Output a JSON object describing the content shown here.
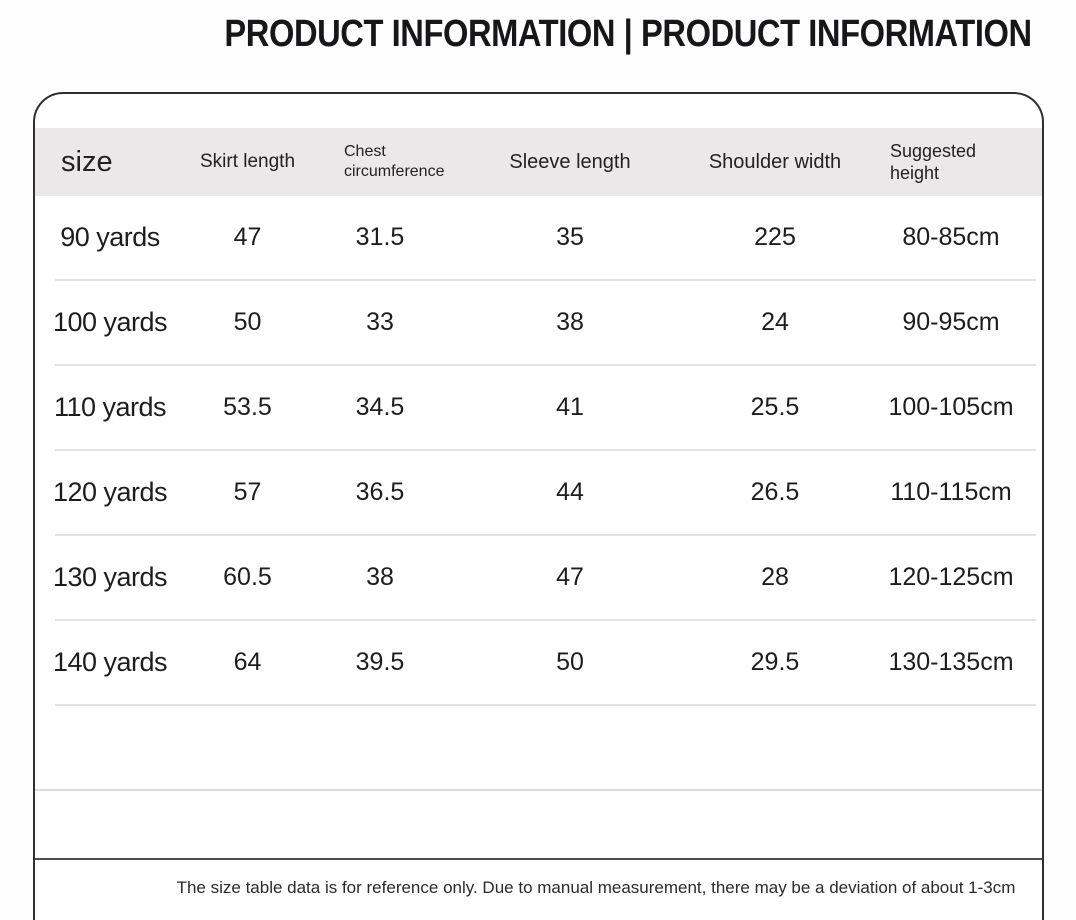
{
  "page": {
    "title": "PRODUCT INFORMATION | PRODUCT INFORMATION"
  },
  "size_table": {
    "columns": [
      {
        "key": "size",
        "label": "size"
      },
      {
        "key": "skirt_length",
        "label": "Skirt length"
      },
      {
        "key": "chest_circumference",
        "label": "Chest circumference"
      },
      {
        "key": "sleeve_length",
        "label": "Sleeve length"
      },
      {
        "key": "shoulder_width",
        "label": "Shoulder width"
      },
      {
        "key": "suggested_height",
        "label": "Suggested height"
      }
    ],
    "rows": [
      [
        "90 yards",
        "47",
        "31.5",
        "35",
        "225",
        "80-85cm"
      ],
      [
        "100 yards",
        "50",
        "33",
        "38",
        "24",
        "90-95cm"
      ],
      [
        "110 yards",
        "53.5",
        "34.5",
        "41",
        "25.5",
        "100-105cm"
      ],
      [
        "120 yards",
        "57",
        "36.5",
        "44",
        "26.5",
        "110-115cm"
      ],
      [
        "130 yards",
        "60.5",
        "38",
        "47",
        "28",
        "120-125cm"
      ],
      [
        "140 yards",
        "64",
        "39.5",
        "50",
        "29.5",
        "130-135cm"
      ]
    ]
  },
  "footer": {
    "note": "The size table data is for reference only. Due to manual measurement, there may be a deviation of about 1-3cm"
  },
  "colors": {
    "header_band": "#eae8e9",
    "card_border": "#2f2f2f",
    "row_divider": "#e3e1e1",
    "footer_divider": "#4d4d4d",
    "title_text": "#17171a",
    "body_text": "#1d1d1d"
  }
}
